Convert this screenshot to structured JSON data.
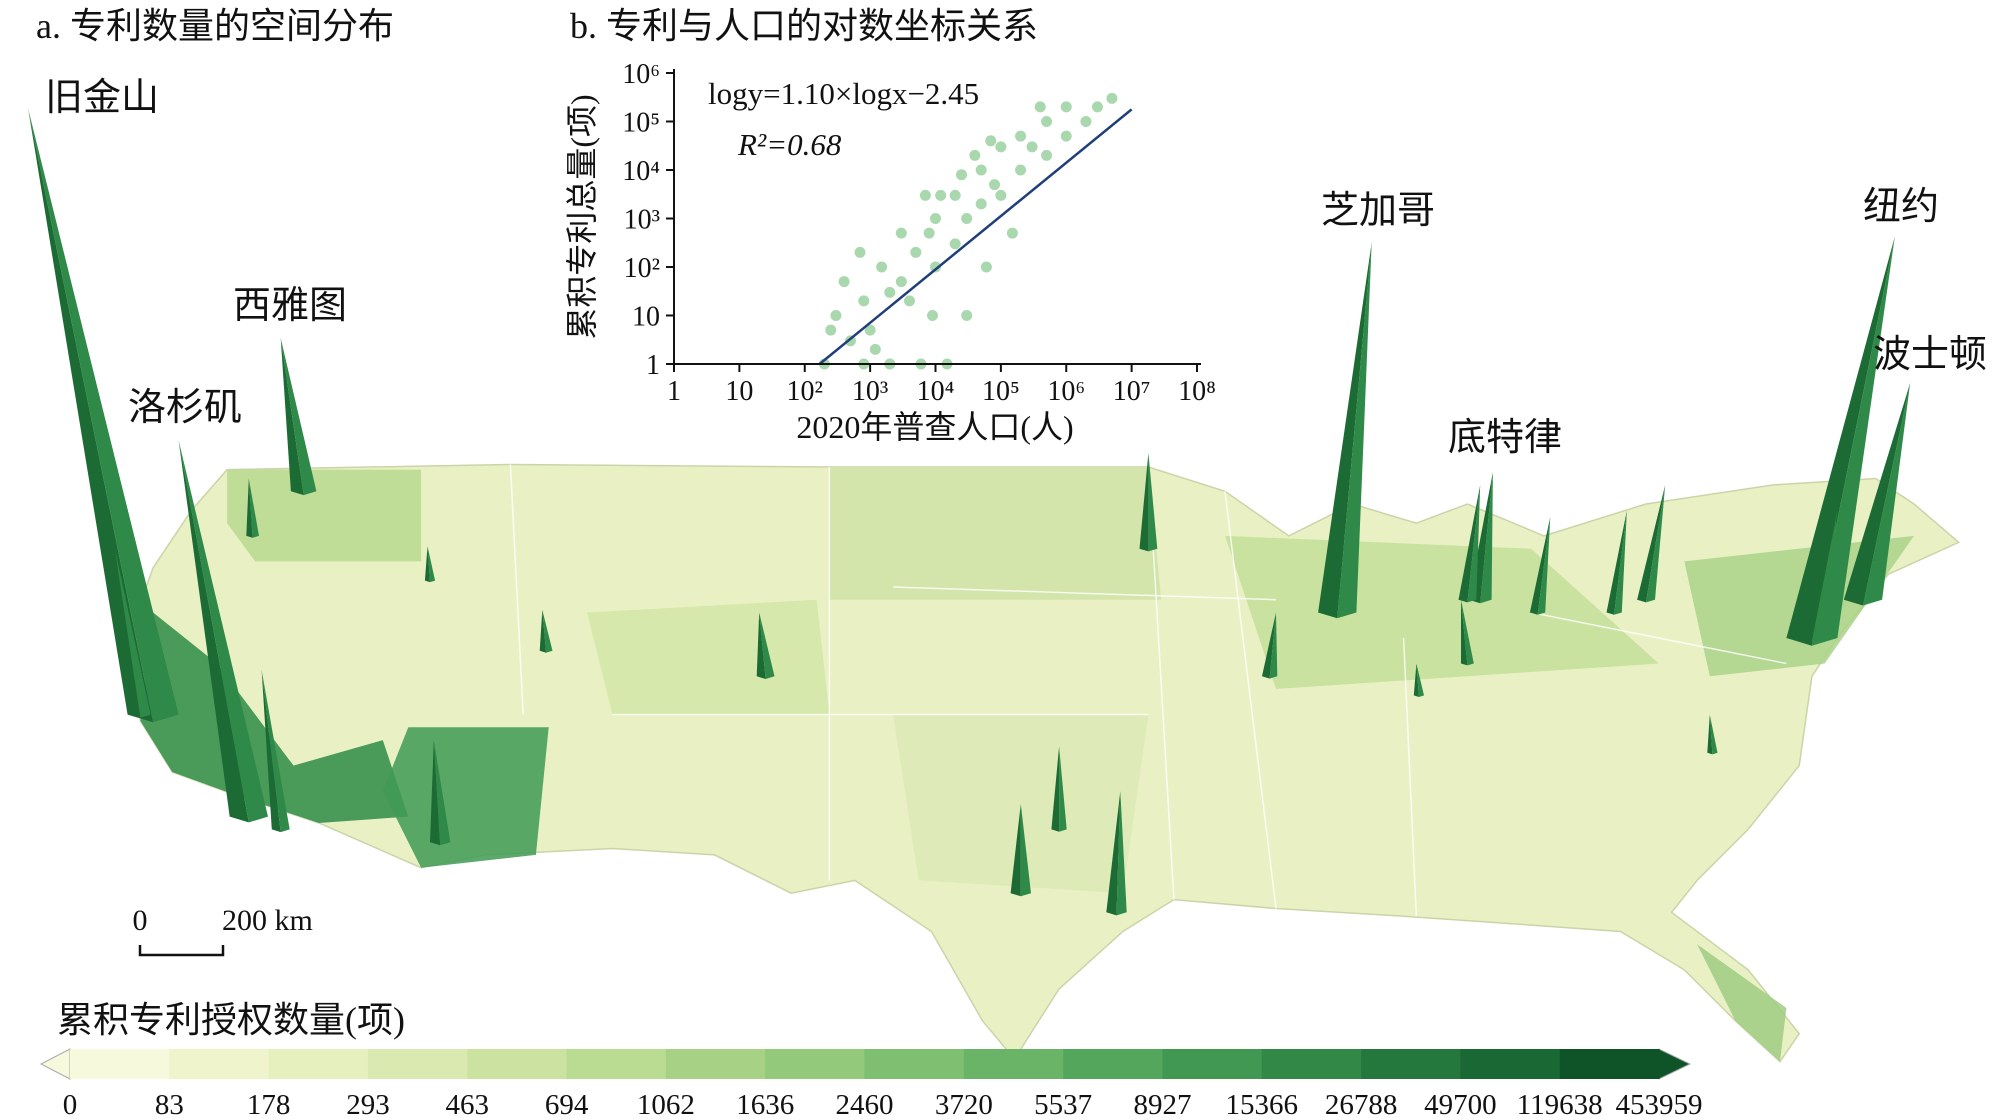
{
  "map": {
    "title": "a. 专利数量的空间分布",
    "cities": [
      "旧金山",
      "西雅图",
      "洛杉矶",
      "芝加哥",
      "底特律",
      "纽约",
      "波士顿"
    ],
    "scale_bar": [
      "0",
      "200 km"
    ],
    "colorbar": {
      "title": "累积专利授权数量(项)",
      "ticks": [
        0,
        83,
        178,
        293,
        463,
        694,
        1062,
        1636,
        2460,
        3720,
        5537,
        8927,
        15366,
        26788,
        49700,
        119638,
        453959
      ],
      "colors": [
        "#f7f9dc",
        "#eff4cc",
        "#e6efbe",
        "#d9e9af",
        "#cbe2a0",
        "#badb92",
        "#a7d286",
        "#93c97b",
        "#7fbf71",
        "#6ab468",
        "#55a65d",
        "#419852",
        "#328847",
        "#25783d",
        "#1a6833",
        "#0f5328"
      ]
    }
  },
  "chart_data": {
    "type": "scatter",
    "title": "b. 专利与人口的对数坐标关系",
    "x_label": "2020年普查人口(人)",
    "y_label": "累积专利总量(项)",
    "annotations": [
      "logy=1.10×logx−2.45",
      "R²=0.68"
    ],
    "fit": {
      "slope": 1.1,
      "intercept": -2.45,
      "color": "#1f3f7a"
    },
    "color": "#72be78",
    "log_scale": true,
    "xlim": [
      1,
      100000000
    ],
    "ylim": [
      1,
      1000000
    ],
    "xticks": [
      1,
      10,
      {
        "value": 100,
        "label": "10²"
      },
      {
        "value": 1000,
        "label": "10³"
      },
      {
        "value": 10000,
        "label": "10⁴"
      },
      {
        "value": 100000,
        "label": "10⁵"
      },
      {
        "value": 1000000,
        "label": "10⁶"
      },
      {
        "value": 10000000,
        "label": "10⁷"
      },
      {
        "value": 100000000,
        "label": "10⁸"
      }
    ],
    "yticks": [
      1,
      10,
      {
        "value": 100,
        "label": "10²"
      },
      {
        "value": 1000,
        "label": "10³"
      },
      {
        "value": 10000,
        "label": "10⁴"
      },
      {
        "value": 100000,
        "label": "10⁵"
      },
      {
        "value": 1000000,
        "label": "10⁶"
      }
    ],
    "x": [
      200,
      500,
      300,
      800,
      1000,
      2000,
      1500,
      3000,
      5000,
      4000,
      8000,
      10000,
      10000,
      20000,
      20000,
      30000,
      50000,
      50000,
      80000,
      100000,
      100000,
      200000,
      200000,
      300000,
      500000,
      500000,
      1000000,
      1000000,
      2000000,
      3000000,
      5000000,
      800,
      2000,
      6000,
      15000,
      400,
      3000,
      700,
      30000,
      60000,
      150000,
      12000,
      40000,
      7000,
      250,
      1200,
      9000,
      25000,
      70000,
      400000
    ],
    "y": [
      1,
      3,
      10,
      20,
      5,
      30,
      100,
      50,
      200,
      20,
      500,
      100,
      1000,
      300,
      3000,
      1000,
      2000,
      10000,
      5000,
      3000,
      30000,
      10000,
      50000,
      30000,
      100000,
      20000,
      50000,
      200000,
      100000,
      200000,
      300000,
      1,
      1,
      1,
      1,
      50,
      500,
      200,
      10,
      100,
      500,
      3000,
      20000,
      3000,
      5,
      2,
      10,
      8000,
      40000,
      200000
    ]
  }
}
